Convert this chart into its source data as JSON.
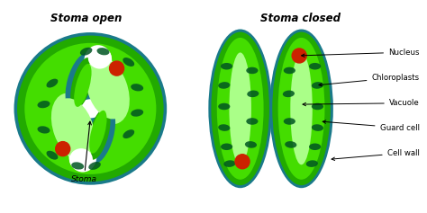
{
  "title_left": "Stoma open",
  "title_right": "Stoma closed",
  "labels": [
    "Nucleus",
    "Chloroplasts",
    "Vacuole",
    "Guard cell",
    "Cell wall"
  ],
  "stoma_label": "Stoma",
  "color_teal": "#1a7a8a",
  "color_dark_green": "#22aa00",
  "color_mid_green": "#44dd00",
  "color_light_green": "#aaff88",
  "color_nucleus": "#cc2200",
  "color_chloroplast": "#005522",
  "bg_color": "#ffffff"
}
